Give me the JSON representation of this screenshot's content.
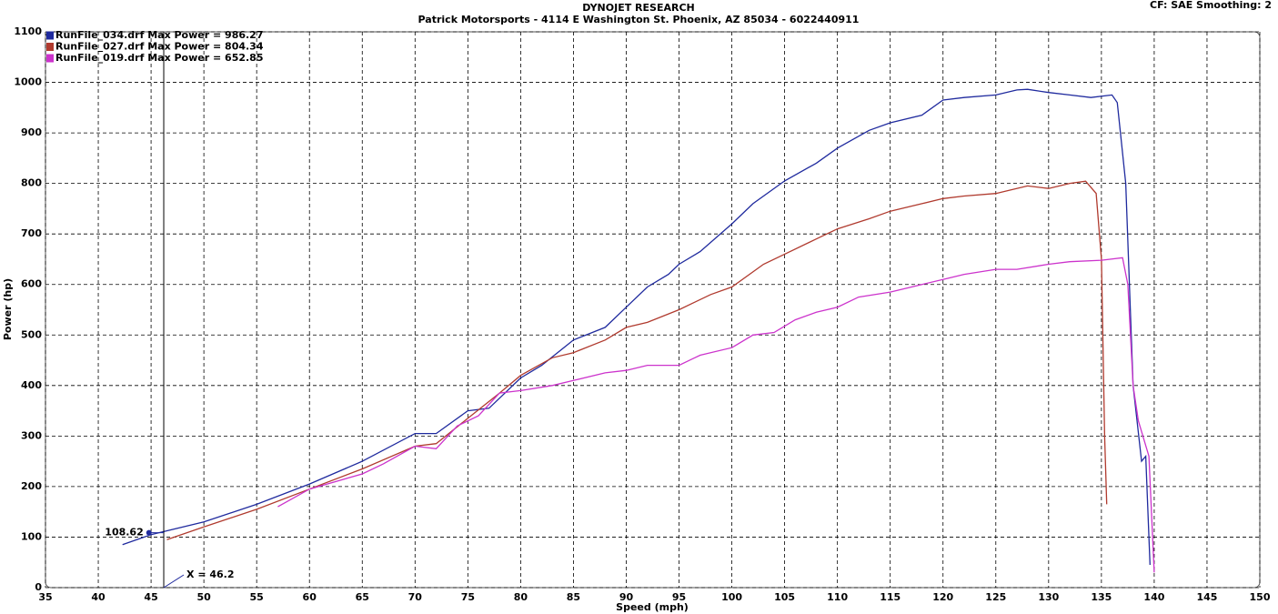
{
  "chart_data": {
    "type": "line",
    "title": "DYNOJET RESEARCH",
    "subtitle": "Patrick Motorsports - 4114 E Washington St. Phoenix, AZ 85034 - 6022440911",
    "corner_note": "CF: SAE  Smoothing: 2",
    "x_label": "Speed (mph)",
    "y_label": "Power (hp)",
    "xlim": [
      35,
      150
    ],
    "ylim": [
      0,
      1100
    ],
    "xticks": [
      35,
      40,
      45,
      50,
      55,
      60,
      65,
      70,
      75,
      80,
      85,
      90,
      95,
      100,
      105,
      110,
      115,
      120,
      125,
      130,
      135,
      140,
      145,
      150
    ],
    "yticks": [
      0,
      100,
      200,
      300,
      400,
      500,
      600,
      700,
      800,
      900,
      1000,
      1100
    ],
    "grid": true,
    "legend": "top-left",
    "series": [
      {
        "name": "RunFile_034.drf Max Power = 986.27",
        "color": "#1f2a9e",
        "x": [
          42.3,
          45,
          50,
          55,
          60,
          65,
          70,
          72,
          75,
          77,
          80,
          82,
          85,
          88,
          90,
          92,
          94,
          95,
          97,
          100,
          102,
          105,
          108,
          110,
          113,
          115,
          118,
          120,
          122,
          125,
          127,
          128,
          130,
          132,
          134,
          136,
          136.5,
          137.3,
          138,
          138.8,
          139.2,
          139.6
        ],
        "values": [
          85,
          105,
          130,
          165,
          205,
          250,
          305,
          305,
          350,
          355,
          415,
          440,
          490,
          515,
          555,
          595,
          620,
          640,
          665,
          720,
          760,
          805,
          840,
          870,
          905,
          920,
          935,
          965,
          970,
          975,
          985,
          986.27,
          980,
          975,
          970,
          975,
          960,
          800,
          400,
          250,
          260,
          45
        ]
      },
      {
        "name": "RunFile_027.drf Max Power = 804.34",
        "color": "#b03a2e",
        "x": [
          46.5,
          50,
          55,
          60,
          65,
          70,
          72,
          75,
          78,
          80,
          83,
          85,
          88,
          90,
          92,
          95,
          98,
          100,
          103,
          105,
          108,
          110,
          113,
          115,
          118,
          120,
          122,
          125,
          128,
          130,
          132,
          133.5,
          134.5,
          135,
          135.3,
          135.5
        ],
        "values": [
          95,
          120,
          155,
          195,
          235,
          280,
          285,
          335,
          385,
          420,
          455,
          465,
          490,
          515,
          525,
          550,
          580,
          595,
          640,
          660,
          690,
          710,
          730,
          745,
          760,
          770,
          775,
          780,
          795,
          790,
          800,
          804.34,
          780,
          650,
          300,
          165
        ]
      },
      {
        "name": "RunFile_019.drf Max Power = 652.85",
        "color": "#cc33cc",
        "x": [
          57,
          60,
          65,
          67,
          70,
          72,
          74,
          76,
          78,
          80,
          83,
          85,
          88,
          90,
          92,
          95,
          97,
          100,
          102,
          104,
          106,
          108,
          110,
          112,
          115,
          118,
          120,
          122,
          125,
          127,
          130,
          132,
          135,
          137,
          137.5,
          138,
          138.5,
          139.5,
          140
        ],
        "values": [
          160,
          195,
          225,
          245,
          280,
          275,
          320,
          340,
          385,
          390,
          400,
          410,
          425,
          430,
          440,
          440,
          460,
          475,
          500,
          505,
          530,
          545,
          555,
          575,
          585,
          600,
          610,
          620,
          630,
          630,
          640,
          645,
          648,
          652.85,
          600,
          400,
          330,
          260,
          30
        ]
      }
    ],
    "cursor": {
      "x": 46.2,
      "label": "X = 46.2"
    },
    "marker": {
      "x": 44.8,
      "y": 108.62
    }
  }
}
